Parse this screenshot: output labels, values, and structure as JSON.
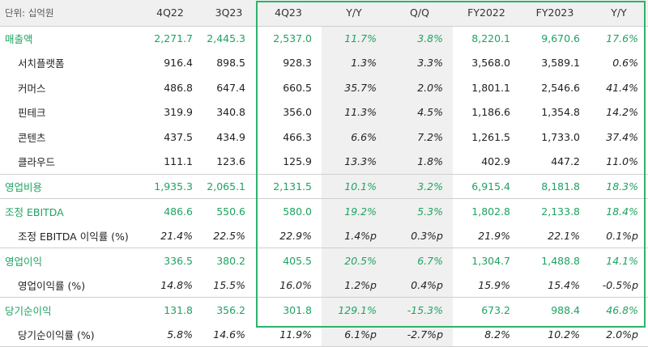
{
  "header": {
    "unit": "단위: 십억원",
    "columns": [
      "4Q22",
      "3Q23",
      "4Q23",
      "Y/Y",
      "Q/Q",
      "FY2022",
      "FY2023",
      "Y/Y"
    ]
  },
  "rows": [
    {
      "label": "매출액",
      "values": [
        "2,271.7",
        "2,445.3",
        "2,537.0",
        "11.7%",
        "3.8%",
        "8,220.1",
        "9,670.6",
        "17.6%"
      ]
    },
    {
      "label": "서치플랫폼",
      "values": [
        "916.4",
        "898.5",
        "928.3",
        "1.3%",
        "3.3%",
        "3,568.0",
        "3,589.1",
        "0.6%"
      ]
    },
    {
      "label": "커머스",
      "values": [
        "486.8",
        "647.4",
        "660.5",
        "35.7%",
        "2.0%",
        "1,801.1",
        "2,546.6",
        "41.4%"
      ]
    },
    {
      "label": "핀테크",
      "values": [
        "319.9",
        "340.8",
        "356.0",
        "11.3%",
        "4.5%",
        "1,186.6",
        "1,354.8",
        "14.2%"
      ]
    },
    {
      "label": "콘텐츠",
      "values": [
        "437.5",
        "434.9",
        "466.3",
        "6.6%",
        "7.2%",
        "1,261.5",
        "1,733.0",
        "37.4%"
      ]
    },
    {
      "label": "클라우드",
      "values": [
        "111.1",
        "123.6",
        "125.9",
        "13.3%",
        "1.8%",
        "402.9",
        "447.2",
        "11.0%"
      ]
    },
    {
      "label": "영업비용",
      "values": [
        "1,935.3",
        "2,065.1",
        "2,131.5",
        "10.1%",
        "3.2%",
        "6,915.4",
        "8,181.8",
        "18.3%"
      ]
    },
    {
      "label": "조정 EBITDA",
      "values": [
        "486.6",
        "550.6",
        "580.0",
        "19.2%",
        "5.3%",
        "1,802.8",
        "2,133.8",
        "18.4%"
      ]
    },
    {
      "label": "조정 EBITDA 이익률 (%)",
      "values": [
        "21.4%",
        "22.5%",
        "22.9%",
        "1.4%p",
        "0.3%p",
        "21.9%",
        "22.1%",
        "0.1%p"
      ]
    },
    {
      "label": "영업이익",
      "values": [
        "336.5",
        "380.2",
        "405.5",
        "20.5%",
        "6.7%",
        "1,304.7",
        "1,488.8",
        "14.1%"
      ]
    },
    {
      "label": "영업이익률 (%)",
      "values": [
        "14.8%",
        "15.5%",
        "16.0%",
        "1.2%p",
        "0.4%p",
        "15.9%",
        "15.4%",
        "-0.5%p"
      ]
    },
    {
      "label": "당기순이익",
      "values": [
        "131.8",
        "356.2",
        "301.8",
        "129.1%",
        "-15.3%",
        "673.2",
        "988.4",
        "46.8%"
      ]
    },
    {
      "label": "당기순이익률 (%)",
      "values": [
        "5.8%",
        "14.6%",
        "11.9%",
        "6.1%p",
        "-2.7%p",
        "8.2%",
        "10.2%",
        "2.0%p"
      ]
    }
  ],
  "colors": {
    "accent": "#1ea362",
    "highlight_border": "#2db36b",
    "shade": "#f0f0f0"
  }
}
